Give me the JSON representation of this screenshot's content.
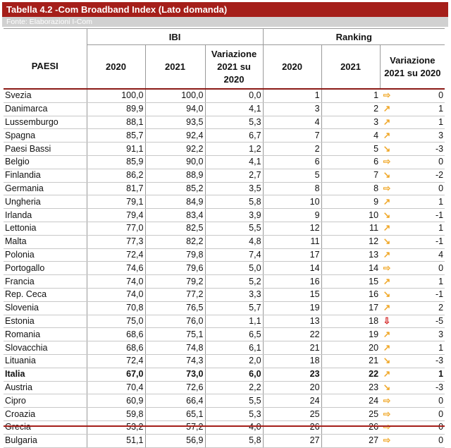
{
  "title": "Tabella 4.2 -Com Broadband Index (Lato domanda)",
  "source": "Fonte: Elaborazioni I-Com",
  "groups": {
    "ibi": "IBI",
    "ranking": "Ranking"
  },
  "columns": {
    "paesi": "PAESI",
    "ibi_2020": "2020",
    "ibi_2021": "2021",
    "ibi_var_1": "Variazione",
    "ibi_var_2": "2021 su 2020",
    "rank_2020": "2020",
    "rank_2021": "2021",
    "rank_var_1": "Variazione",
    "rank_var_2": "2021 su 2020"
  },
  "arrow_colors": {
    "neutral": "#f0a82a",
    "up": "#f0a82a",
    "down": "#f0a82a",
    "strong_down": "#d32020"
  },
  "rows": [
    {
      "paese": "Svezia",
      "ibi_2020": "100,0",
      "ibi_2021": "100,0",
      "ibi_var": "0,0",
      "rank_2020": "1",
      "rank_2021": "1",
      "trend": "right",
      "rank_var": "0"
    },
    {
      "paese": "Danimarca",
      "ibi_2020": "89,9",
      "ibi_2021": "94,0",
      "ibi_var": "4,1",
      "rank_2020": "3",
      "rank_2021": "2",
      "trend": "up",
      "rank_var": "1"
    },
    {
      "paese": "Lussemburgo",
      "ibi_2020": "88,1",
      "ibi_2021": "93,5",
      "ibi_var": "5,3",
      "rank_2020": "4",
      "rank_2021": "3",
      "trend": "up",
      "rank_var": "1"
    },
    {
      "paese": "Spagna",
      "ibi_2020": "85,7",
      "ibi_2021": "92,4",
      "ibi_var": "6,7",
      "rank_2020": "7",
      "rank_2021": "4",
      "trend": "up",
      "rank_var": "3"
    },
    {
      "paese": "Paesi Bassi",
      "ibi_2020": "91,1",
      "ibi_2021": "92,2",
      "ibi_var": "1,2",
      "rank_2020": "2",
      "rank_2021": "5",
      "trend": "down",
      "rank_var": "-3"
    },
    {
      "paese": "Belgio",
      "ibi_2020": "85,9",
      "ibi_2021": "90,0",
      "ibi_var": "4,1",
      "rank_2020": "6",
      "rank_2021": "6",
      "trend": "right",
      "rank_var": "0"
    },
    {
      "paese": "Finlandia",
      "ibi_2020": "86,2",
      "ibi_2021": "88,9",
      "ibi_var": "2,7",
      "rank_2020": "5",
      "rank_2021": "7",
      "trend": "down",
      "rank_var": "-2"
    },
    {
      "paese": "Germania",
      "ibi_2020": "81,7",
      "ibi_2021": "85,2",
      "ibi_var": "3,5",
      "rank_2020": "8",
      "rank_2021": "8",
      "trend": "right",
      "rank_var": "0"
    },
    {
      "paese": "Ungheria",
      "ibi_2020": "79,1",
      "ibi_2021": "84,9",
      "ibi_var": "5,8",
      "rank_2020": "10",
      "rank_2021": "9",
      "trend": "up",
      "rank_var": "1"
    },
    {
      "paese": "Irlanda",
      "ibi_2020": "79,4",
      "ibi_2021": "83,4",
      "ibi_var": "3,9",
      "rank_2020": "9",
      "rank_2021": "10",
      "trend": "down",
      "rank_var": "-1"
    },
    {
      "paese": "Lettonia",
      "ibi_2020": "77,0",
      "ibi_2021": "82,5",
      "ibi_var": "5,5",
      "rank_2020": "12",
      "rank_2021": "11",
      "trend": "up",
      "rank_var": "1"
    },
    {
      "paese": "Malta",
      "ibi_2020": "77,3",
      "ibi_2021": "82,2",
      "ibi_var": "4,8",
      "rank_2020": "11",
      "rank_2021": "12",
      "trend": "down",
      "rank_var": "-1"
    },
    {
      "paese": "Polonia",
      "ibi_2020": "72,4",
      "ibi_2021": "79,8",
      "ibi_var": "7,4",
      "rank_2020": "17",
      "rank_2021": "13",
      "trend": "up",
      "rank_var": "4"
    },
    {
      "paese": "Portogallo",
      "ibi_2020": "74,6",
      "ibi_2021": "79,6",
      "ibi_var": "5,0",
      "rank_2020": "14",
      "rank_2021": "14",
      "trend": "right",
      "rank_var": "0"
    },
    {
      "paese": "Francia",
      "ibi_2020": "74,0",
      "ibi_2021": "79,2",
      "ibi_var": "5,2",
      "rank_2020": "16",
      "rank_2021": "15",
      "trend": "up",
      "rank_var": "1"
    },
    {
      "paese": "Rep. Ceca",
      "ibi_2020": "74,0",
      "ibi_2021": "77,2",
      "ibi_var": "3,3",
      "rank_2020": "15",
      "rank_2021": "16",
      "trend": "down",
      "rank_var": "-1"
    },
    {
      "paese": "Slovenia",
      "ibi_2020": "70,8",
      "ibi_2021": "76,5",
      "ibi_var": "5,7",
      "rank_2020": "19",
      "rank_2021": "17",
      "trend": "up",
      "rank_var": "2"
    },
    {
      "paese": "Estonia",
      "ibi_2020": "75,0",
      "ibi_2021": "76,0",
      "ibi_var": "1,1",
      "rank_2020": "13",
      "rank_2021": "18",
      "trend": "strong-down",
      "rank_var": "-5"
    },
    {
      "paese": "Romania",
      "ibi_2020": "68,6",
      "ibi_2021": "75,1",
      "ibi_var": "6,5",
      "rank_2020": "22",
      "rank_2021": "19",
      "trend": "up",
      "rank_var": "3"
    },
    {
      "paese": "Slovacchia",
      "ibi_2020": "68,6",
      "ibi_2021": "74,8",
      "ibi_var": "6,1",
      "rank_2020": "21",
      "rank_2021": "20",
      "trend": "up",
      "rank_var": "1"
    },
    {
      "paese": "Lituania",
      "ibi_2020": "72,4",
      "ibi_2021": "74,3",
      "ibi_var": "2,0",
      "rank_2020": "18",
      "rank_2021": "21",
      "trend": "down",
      "rank_var": "-3"
    },
    {
      "paese": "Italia",
      "ibi_2020": "67,0",
      "ibi_2021": "73,0",
      "ibi_var": "6,0",
      "rank_2020": "23",
      "rank_2021": "22",
      "trend": "up",
      "rank_var": "1",
      "bold": true
    },
    {
      "paese": "Austria",
      "ibi_2020": "70,4",
      "ibi_2021": "72,6",
      "ibi_var": "2,2",
      "rank_2020": "20",
      "rank_2021": "23",
      "trend": "down",
      "rank_var": "-3"
    },
    {
      "paese": "Cipro",
      "ibi_2020": "60,9",
      "ibi_2021": "66,4",
      "ibi_var": "5,5",
      "rank_2020": "24",
      "rank_2021": "24",
      "trend": "right",
      "rank_var": "0"
    },
    {
      "paese": "Croazia",
      "ibi_2020": "59,8",
      "ibi_2021": "65,1",
      "ibi_var": "5,3",
      "rank_2020": "25",
      "rank_2021": "25",
      "trend": "right",
      "rank_var": "0"
    },
    {
      "paese": "Grecia",
      "ibi_2020": "53,2",
      "ibi_2021": "57,2",
      "ibi_var": "4,0",
      "rank_2020": "26",
      "rank_2021": "26",
      "trend": "right",
      "rank_var": "0"
    },
    {
      "paese": "Bulgaria",
      "ibi_2020": "51,1",
      "ibi_2021": "56,9",
      "ibi_var": "5,8",
      "rank_2020": "27",
      "rank_2021": "27",
      "trend": "right",
      "rank_var": "0"
    }
  ]
}
